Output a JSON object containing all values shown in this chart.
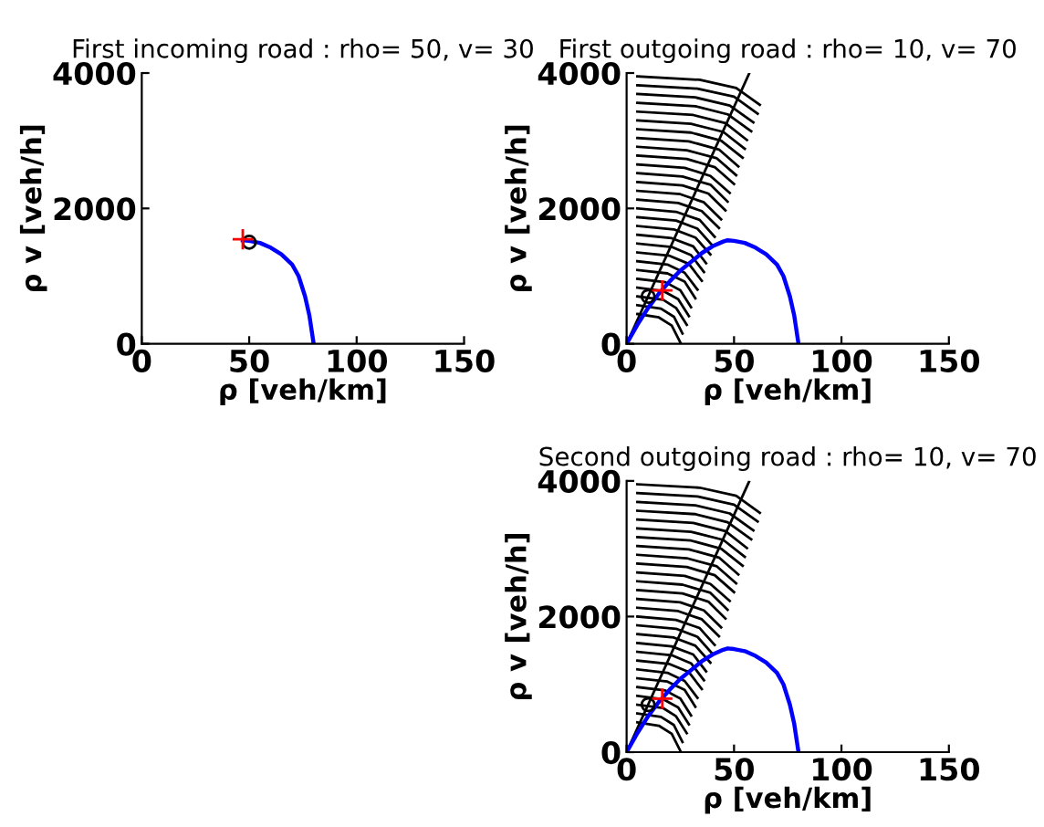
{
  "chart_data": [
    {
      "type": "line",
      "title": "First incoming road : rho= 50, v= 30",
      "xlabel": "ρ [veh/km]",
      "ylabel": "ρ v [veh/h]",
      "xlim": [
        0,
        150
      ],
      "ylim": [
        0,
        4000
      ],
      "xticks": [
        0,
        50,
        100,
        150
      ],
      "yticks": [
        0,
        2000,
        4000
      ],
      "grid": false,
      "legend": false,
      "series": [
        {
          "type": "line",
          "color": "#0000ff",
          "line_style": "solid",
          "x": [
            47,
            50,
            55,
            60,
            65,
            70,
            73,
            76,
            78,
            80
          ],
          "values": [
            1530,
            1520,
            1490,
            1420,
            1320,
            1170,
            1000,
            700,
            420,
            0
          ]
        },
        {
          "type": "scatter",
          "color": "#000000",
          "marker": "circle",
          "x": [
            50
          ],
          "values": [
            1500
          ]
        },
        {
          "type": "scatter",
          "color": "#ff0000",
          "marker": "cross",
          "x": [
            47
          ],
          "values": [
            1545
          ]
        }
      ]
    },
    {
      "type": "line",
      "title": "First outgoing road : rho= 10, v= 70",
      "xlabel": "ρ [veh/km]",
      "ylabel": "ρ v [veh/h]",
      "xlim": [
        0,
        150
      ],
      "ylim": [
        0,
        4000
      ],
      "xticks": [
        0,
        50,
        100,
        150
      ],
      "yticks": [
        0,
        2000,
        4000
      ],
      "grid": false,
      "legend": false,
      "series": [
        {
          "x": [
            5,
            34,
            51,
            62
          ],
          "values": [
            3950,
            3900,
            3780,
            3530
          ],
          "color": "#000000"
        },
        {
          "x": [
            5,
            33,
            50,
            61
          ],
          "values": [
            3820,
            3770,
            3650,
            3400
          ],
          "color": "#000000"
        },
        {
          "x": [
            5,
            32,
            48,
            59
          ],
          "values": [
            3690,
            3640,
            3520,
            3270
          ],
          "color": "#000000"
        },
        {
          "x": [
            5,
            32,
            47,
            58
          ],
          "values": [
            3560,
            3510,
            3390,
            3140
          ],
          "color": "#000000"
        },
        {
          "x": [
            5,
            31,
            46,
            56
          ],
          "values": [
            3430,
            3380,
            3260,
            3010
          ],
          "color": "#000000"
        },
        {
          "x": [
            5,
            30,
            45,
            55
          ],
          "values": [
            3300,
            3250,
            3130,
            2880
          ],
          "color": "#000000"
        },
        {
          "x": [
            5,
            30,
            44,
            54
          ],
          "values": [
            3170,
            3120,
            3000,
            2750
          ],
          "color": "#000000"
        },
        {
          "x": [
            5,
            29,
            43,
            52
          ],
          "values": [
            3040,
            2990,
            2870,
            2620
          ],
          "color": "#000000"
        },
        {
          "x": [
            5,
            28,
            42,
            51
          ],
          "values": [
            2910,
            2860,
            2740,
            2490
          ],
          "color": "#000000"
        },
        {
          "x": [
            5,
            28,
            41,
            50
          ],
          "values": [
            2780,
            2730,
            2610,
            2360
          ],
          "color": "#000000"
        },
        {
          "x": [
            5,
            27,
            39,
            48
          ],
          "values": [
            2650,
            2600,
            2480,
            2230
          ],
          "color": "#000000"
        },
        {
          "x": [
            5,
            26,
            39,
            47
          ],
          "values": [
            2520,
            2470,
            2350,
            2100
          ],
          "color": "#000000"
        },
        {
          "x": [
            5,
            26,
            38,
            46
          ],
          "values": [
            2390,
            2340,
            2220,
            1970
          ],
          "color": "#000000"
        },
        {
          "x": [
            5,
            25,
            36,
            44
          ],
          "values": [
            2260,
            2210,
            2090,
            1840
          ],
          "color": "#000000"
        },
        {
          "x": [
            5,
            24,
            35,
            43
          ],
          "values": [
            2130,
            2080,
            1960,
            1710
          ],
          "color": "#000000"
        },
        {
          "x": [
            5,
            23,
            34,
            41
          ],
          "values": [
            2000,
            1950,
            1830,
            1580
          ],
          "color": "#000000"
        },
        {
          "x": [
            5,
            23,
            33,
            40
          ],
          "values": [
            1870,
            1820,
            1700,
            1450
          ],
          "color": "#000000"
        },
        {
          "x": [
            5,
            22,
            32,
            39
          ],
          "values": [
            1740,
            1690,
            1570,
            1320
          ],
          "color": "#000000"
        },
        {
          "x": [
            5,
            21,
            31,
            37
          ],
          "values": [
            1610,
            1560,
            1440,
            1190
          ],
          "color": "#000000"
        },
        {
          "x": [
            5,
            21,
            30,
            36
          ],
          "values": [
            1480,
            1430,
            1310,
            1060
          ],
          "color": "#000000"
        },
        {
          "x": [
            5,
            20,
            29,
            35
          ],
          "values": [
            1350,
            1300,
            1180,
            930
          ],
          "color": "#000000"
        },
        {
          "x": [
            5,
            19,
            27,
            33
          ],
          "values": [
            1220,
            1170,
            1050,
            800
          ],
          "color": "#000000"
        },
        {
          "x": [
            5,
            19,
            27,
            32
          ],
          "values": [
            1090,
            1040,
            920,
            670
          ],
          "color": "#000000"
        },
        {
          "x": [
            5,
            18,
            25,
            30
          ],
          "values": [
            960,
            910,
            790,
            540
          ],
          "color": "#000000"
        },
        {
          "x": [
            5,
            17,
            24,
            29
          ],
          "values": [
            830,
            780,
            660,
            410
          ],
          "color": "#000000"
        },
        {
          "x": [
            5,
            17,
            23,
            28
          ],
          "values": [
            700,
            650,
            530,
            280
          ],
          "color": "#000000"
        },
        {
          "x": [
            5,
            16,
            22,
            26
          ],
          "values": [
            570,
            520,
            400,
            150
          ],
          "color": "#000000"
        },
        {
          "x": [
            5,
            15,
            21,
            25
          ],
          "values": [
            440,
            390,
            270,
            20
          ],
          "color": "#000000"
        },
        {
          "x": [
            0,
            57
          ],
          "values": [
            0,
            3990
          ],
          "color": "#000000"
        },
        {
          "x": [
            0,
            5,
            10,
            15,
            20,
            25,
            30,
            35,
            40,
            45,
            47,
            50,
            55,
            60,
            65,
            70,
            73,
            76,
            78,
            80
          ],
          "values": [
            0,
            280,
            530,
            740,
            920,
            1080,
            1210,
            1340,
            1440,
            1510,
            1530,
            1520,
            1490,
            1420,
            1320,
            1170,
            1000,
            700,
            420,
            0
          ],
          "color": "#0000ff"
        },
        {
          "type": "scatter",
          "color": "#000000",
          "marker": "circle",
          "x": [
            10
          ],
          "values": [
            700
          ]
        },
        {
          "type": "scatter",
          "color": "#ff0000",
          "marker": "cross",
          "x": [
            16.6
          ],
          "values": [
            790
          ]
        }
      ]
    },
    {
      "type": "line",
      "title": "Second outgoing road : rho= 10, v= 70",
      "xlabel": "ρ [veh/km]",
      "ylabel": "ρ v [veh/h]",
      "xlim": [
        0,
        150
      ],
      "ylim": [
        0,
        4000
      ],
      "xticks": [
        0,
        50,
        100,
        150
      ],
      "yticks": [
        0,
        2000,
        4000
      ],
      "grid": false,
      "legend": false,
      "series": [
        {
          "x": [
            5,
            34,
            51,
            62
          ],
          "values": [
            3950,
            3900,
            3780,
            3530
          ],
          "color": "#000000"
        },
        {
          "x": [
            5,
            33,
            50,
            61
          ],
          "values": [
            3820,
            3770,
            3650,
            3400
          ],
          "color": "#000000"
        },
        {
          "x": [
            5,
            32,
            48,
            59
          ],
          "values": [
            3690,
            3640,
            3520,
            3270
          ],
          "color": "#000000"
        },
        {
          "x": [
            5,
            32,
            47,
            58
          ],
          "values": [
            3560,
            3510,
            3390,
            3140
          ],
          "color": "#000000"
        },
        {
          "x": [
            5,
            31,
            46,
            56
          ],
          "values": [
            3430,
            3380,
            3260,
            3010
          ],
          "color": "#000000"
        },
        {
          "x": [
            5,
            30,
            45,
            55
          ],
          "values": [
            3300,
            3250,
            3130,
            2880
          ],
          "color": "#000000"
        },
        {
          "x": [
            5,
            30,
            44,
            54
          ],
          "values": [
            3170,
            3120,
            3000,
            2750
          ],
          "color": "#000000"
        },
        {
          "x": [
            5,
            29,
            43,
            52
          ],
          "values": [
            3040,
            2990,
            2870,
            2620
          ],
          "color": "#000000"
        },
        {
          "x": [
            5,
            28,
            42,
            51
          ],
          "values": [
            2910,
            2860,
            2740,
            2490
          ],
          "color": "#000000"
        },
        {
          "x": [
            5,
            28,
            41,
            50
          ],
          "values": [
            2780,
            2730,
            2610,
            2360
          ],
          "color": "#000000"
        },
        {
          "x": [
            5,
            27,
            39,
            48
          ],
          "values": [
            2650,
            2600,
            2480,
            2230
          ],
          "color": "#000000"
        },
        {
          "x": [
            5,
            26,
            39,
            47
          ],
          "values": [
            2520,
            2470,
            2350,
            2100
          ],
          "color": "#000000"
        },
        {
          "x": [
            5,
            26,
            38,
            46
          ],
          "values": [
            2390,
            2340,
            2220,
            1970
          ],
          "color": "#000000"
        },
        {
          "x": [
            5,
            25,
            36,
            44
          ],
          "values": [
            2260,
            2210,
            2090,
            1840
          ],
          "color": "#000000"
        },
        {
          "x": [
            5,
            24,
            35,
            43
          ],
          "values": [
            2130,
            2080,
            1960,
            1710
          ],
          "color": "#000000"
        },
        {
          "x": [
            5,
            23,
            34,
            41
          ],
          "values": [
            2000,
            1950,
            1830,
            1580
          ],
          "color": "#000000"
        },
        {
          "x": [
            5,
            23,
            33,
            40
          ],
          "values": [
            1870,
            1820,
            1700,
            1450
          ],
          "color": "#000000"
        },
        {
          "x": [
            5,
            22,
            32,
            39
          ],
          "values": [
            1740,
            1690,
            1570,
            1320
          ],
          "color": "#000000"
        },
        {
          "x": [
            5,
            21,
            31,
            37
          ],
          "values": [
            1610,
            1560,
            1440,
            1190
          ],
          "color": "#000000"
        },
        {
          "x": [
            5,
            21,
            30,
            36
          ],
          "values": [
            1480,
            1430,
            1310,
            1060
          ],
          "color": "#000000"
        },
        {
          "x": [
            5,
            20,
            29,
            35
          ],
          "values": [
            1350,
            1300,
            1180,
            930
          ],
          "color": "#000000"
        },
        {
          "x": [
            5,
            19,
            27,
            33
          ],
          "values": [
            1220,
            1170,
            1050,
            800
          ],
          "color": "#000000"
        },
        {
          "x": [
            5,
            19,
            27,
            32
          ],
          "values": [
            1090,
            1040,
            920,
            670
          ],
          "color": "#000000"
        },
        {
          "x": [
            5,
            18,
            25,
            30
          ],
          "values": [
            960,
            910,
            790,
            540
          ],
          "color": "#000000"
        },
        {
          "x": [
            5,
            17,
            24,
            29
          ],
          "values": [
            830,
            780,
            660,
            410
          ],
          "color": "#000000"
        },
        {
          "x": [
            5,
            17,
            23,
            28
          ],
          "values": [
            700,
            650,
            530,
            280
          ],
          "color": "#000000"
        },
        {
          "x": [
            5,
            16,
            22,
            26
          ],
          "values": [
            570,
            520,
            400,
            150
          ],
          "color": "#000000"
        },
        {
          "x": [
            5,
            15,
            21,
            25
          ],
          "values": [
            440,
            390,
            270,
            20
          ],
          "color": "#000000"
        },
        {
          "x": [
            0,
            57
          ],
          "values": [
            0,
            3990
          ],
          "color": "#000000"
        },
        {
          "x": [
            0,
            5,
            10,
            15,
            20,
            25,
            30,
            35,
            40,
            45,
            47,
            50,
            55,
            60,
            65,
            70,
            73,
            76,
            78,
            80
          ],
          "values": [
            0,
            280,
            530,
            740,
            920,
            1080,
            1210,
            1340,
            1440,
            1510,
            1530,
            1520,
            1490,
            1420,
            1320,
            1170,
            1000,
            700,
            420,
            0
          ],
          "color": "#0000ff"
        },
        {
          "type": "scatter",
          "color": "#000000",
          "marker": "circle",
          "x": [
            10
          ],
          "values": [
            700
          ]
        },
        {
          "type": "scatter",
          "color": "#ff0000",
          "marker": "cross",
          "x": [
            16.6
          ],
          "values": [
            790
          ]
        }
      ]
    }
  ]
}
